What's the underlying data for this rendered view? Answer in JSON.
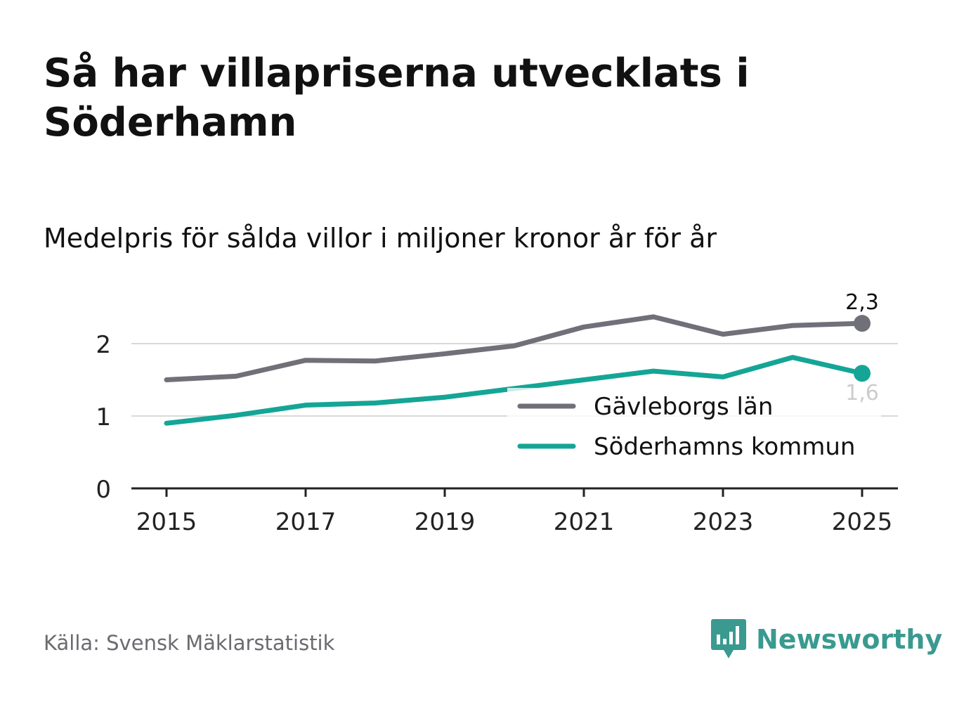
{
  "title": "Så har villapriserna utvecklats i Söderhamn",
  "subtitle": "Medelpris för sålda villor i miljoner kronor år för år",
  "source": "Källa: Svensk Mäklarstatistik",
  "brand": "Newsworthy",
  "colors": {
    "county": "#707078",
    "municipality": "#14a596",
    "grid": "#d9d9d9",
    "axis": "#222222"
  },
  "chart_data": {
    "type": "line",
    "title": "Medelpris för sålda villor i miljoner kronor år för år",
    "x": [
      2015,
      2016,
      2017,
      2018,
      2019,
      2020,
      2021,
      2022,
      2023,
      2024,
      2025
    ],
    "xticks": [
      "2015",
      "2017",
      "2019",
      "2021",
      "2023",
      "2025"
    ],
    "yticks": [
      "0",
      "1",
      "2"
    ],
    "ylim": [
      0,
      2.55
    ],
    "series": [
      {
        "name": "Gävleborgs län",
        "values": [
          1.5,
          1.55,
          1.77,
          1.76,
          1.86,
          1.97,
          2.23,
          2.37,
          2.13,
          2.25,
          2.28
        ],
        "end_label": "2,3"
      },
      {
        "name": "Söderhamns kommun",
        "values": [
          0.9,
          1.01,
          1.15,
          1.18,
          1.26,
          1.38,
          1.5,
          1.62,
          1.54,
          1.81,
          1.59
        ],
        "end_label": "1,6"
      }
    ]
  }
}
